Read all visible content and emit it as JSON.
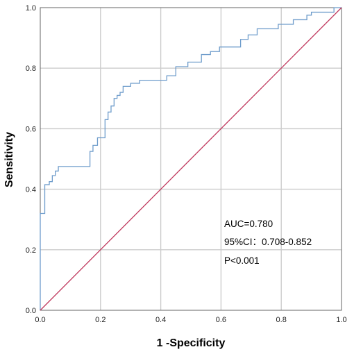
{
  "chart_data": {
    "type": "line",
    "title": "",
    "xlabel": "1 -Specificity",
    "ylabel": "Sensitivity",
    "xlim": [
      0,
      1
    ],
    "ylim": [
      0,
      1
    ],
    "x_ticks": [
      "0.0",
      "0.2",
      "0.4",
      "0.6",
      "0.8",
      "1.0"
    ],
    "y_ticks": [
      "0.0",
      "0.2",
      "0.4",
      "0.6",
      "0.8",
      "1.0"
    ],
    "grid": true,
    "legend": "none",
    "annotations": [
      "AUC=0.780",
      "95%CI：0.708-0.852",
      "P<0.001"
    ],
    "series": [
      {
        "color": "#6e9ccb",
        "style": "step",
        "points": [
          [
            0.0,
            0.0
          ],
          [
            0.0,
            0.32
          ],
          [
            0.015,
            0.32
          ],
          [
            0.015,
            0.415
          ],
          [
            0.03,
            0.415
          ],
          [
            0.03,
            0.425
          ],
          [
            0.04,
            0.425
          ],
          [
            0.04,
            0.445
          ],
          [
            0.05,
            0.445
          ],
          [
            0.05,
            0.46
          ],
          [
            0.06,
            0.46
          ],
          [
            0.06,
            0.475
          ],
          [
            0.165,
            0.475
          ],
          [
            0.165,
            0.525
          ],
          [
            0.175,
            0.525
          ],
          [
            0.175,
            0.545
          ],
          [
            0.19,
            0.545
          ],
          [
            0.19,
            0.57
          ],
          [
            0.215,
            0.57
          ],
          [
            0.215,
            0.63
          ],
          [
            0.225,
            0.63
          ],
          [
            0.225,
            0.655
          ],
          [
            0.235,
            0.655
          ],
          [
            0.235,
            0.675
          ],
          [
            0.245,
            0.675
          ],
          [
            0.245,
            0.7
          ],
          [
            0.255,
            0.7
          ],
          [
            0.255,
            0.71
          ],
          [
            0.265,
            0.71
          ],
          [
            0.265,
            0.72
          ],
          [
            0.275,
            0.72
          ],
          [
            0.275,
            0.74
          ],
          [
            0.3,
            0.74
          ],
          [
            0.3,
            0.75
          ],
          [
            0.33,
            0.75
          ],
          [
            0.33,
            0.76
          ],
          [
            0.42,
            0.76
          ],
          [
            0.42,
            0.775
          ],
          [
            0.45,
            0.775
          ],
          [
            0.45,
            0.805
          ],
          [
            0.49,
            0.805
          ],
          [
            0.49,
            0.82
          ],
          [
            0.535,
            0.82
          ],
          [
            0.535,
            0.845
          ],
          [
            0.565,
            0.845
          ],
          [
            0.565,
            0.855
          ],
          [
            0.595,
            0.855
          ],
          [
            0.595,
            0.87
          ],
          [
            0.665,
            0.87
          ],
          [
            0.665,
            0.895
          ],
          [
            0.69,
            0.895
          ],
          [
            0.69,
            0.91
          ],
          [
            0.72,
            0.91
          ],
          [
            0.72,
            0.93
          ],
          [
            0.79,
            0.93
          ],
          [
            0.79,
            0.945
          ],
          [
            0.84,
            0.945
          ],
          [
            0.84,
            0.96
          ],
          [
            0.885,
            0.96
          ],
          [
            0.885,
            0.975
          ],
          [
            0.9,
            0.975
          ],
          [
            0.9,
            0.985
          ],
          [
            0.975,
            0.985
          ],
          [
            0.975,
            1.0
          ],
          [
            1.0,
            1.0
          ]
        ]
      },
      {
        "color": "#c0395e",
        "style": "line",
        "points": [
          [
            0,
            0
          ],
          [
            1,
            1
          ]
        ]
      }
    ]
  }
}
